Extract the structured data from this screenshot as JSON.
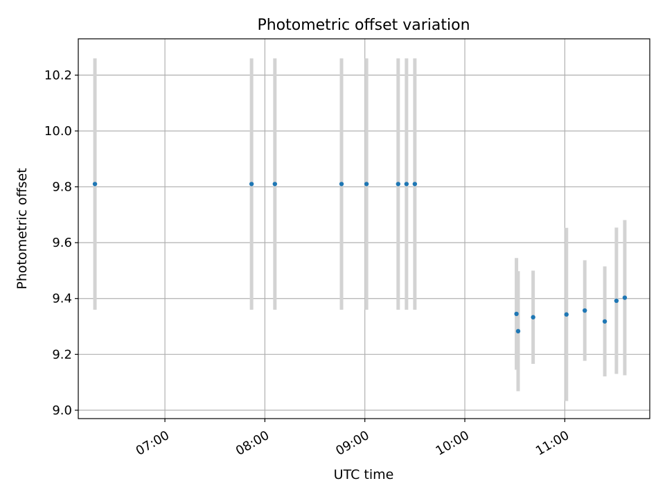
{
  "chart_data": {
    "type": "scatter",
    "title": "Photometric offset variation",
    "xlabel": "UTC time",
    "ylabel": "Photometric offset",
    "x_axis_kind": "time",
    "xlim": [
      "06:08",
      "11:51"
    ],
    "ylim": [
      8.97,
      10.33
    ],
    "x_ticks": [
      "07:00",
      "08:00",
      "09:00",
      "10:00",
      "11:00"
    ],
    "y_ticks": [
      9.0,
      9.2,
      9.4,
      9.6,
      9.8,
      10.0,
      10.2
    ],
    "y_tick_labels": [
      "9.0",
      "9.2",
      "9.4",
      "9.6",
      "9.8",
      "10.0",
      "10.2"
    ],
    "grid": true,
    "series": [
      {
        "points": [
          {
            "x": "06:18",
            "y": 9.81,
            "err": 0.45
          },
          {
            "x": "07:52",
            "y": 9.81,
            "err": 0.45
          },
          {
            "x": "08:06",
            "y": 9.81,
            "err": 0.45
          },
          {
            "x": "08:46",
            "y": 9.81,
            "err": 0.45
          },
          {
            "x": "09:01",
            "y": 9.81,
            "err": 0.45
          },
          {
            "x": "09:20",
            "y": 9.81,
            "err": 0.45
          },
          {
            "x": "09:25",
            "y": 9.81,
            "err": 0.45
          },
          {
            "x": "09:30",
            "y": 9.81,
            "err": 0.45
          },
          {
            "x": "10:31",
            "y": 9.345,
            "err": 0.2
          },
          {
            "x": "10:32",
            "y": 9.283,
            "err": 0.215
          },
          {
            "x": "10:41",
            "y": 9.333,
            "err": 0.167
          },
          {
            "x": "11:01",
            "y": 9.343,
            "err": 0.31
          },
          {
            "x": "11:12",
            "y": 9.357,
            "err": 0.18
          },
          {
            "x": "11:24",
            "y": 9.318,
            "err": 0.197
          },
          {
            "x": "11:31",
            "y": 9.392,
            "err": 0.262
          },
          {
            "x": "11:36",
            "y": 9.403,
            "err": 0.278
          }
        ]
      }
    ],
    "colors": {
      "marker": "#1f77b4",
      "errorbar": "#d3d3d3",
      "grid": "#b0b0b0",
      "axes": "#000000"
    }
  }
}
